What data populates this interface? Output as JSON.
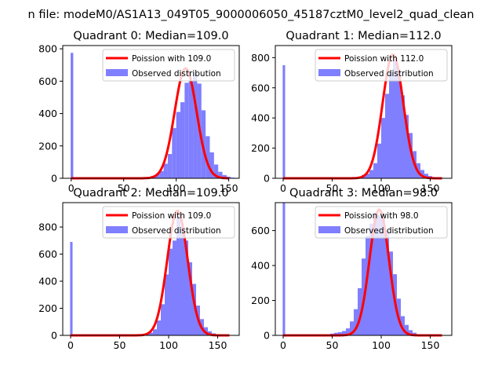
{
  "figure": {
    "suptitle": "n file: modeM0/AS1A13_049T05_9000006050_45187cztM0_level2_quad_clean"
  },
  "chart_data": [
    {
      "type": "bar",
      "title": "Quadrant 0: Median=109.0",
      "xlim": [
        -8,
        160
      ],
      "ylim": [
        0,
        820
      ],
      "xticks": [
        0,
        50,
        100,
        150
      ],
      "yticks": [
        0,
        200,
        400,
        600,
        800
      ],
      "legend": [
        "Poission with 109.0",
        "Observed distribution"
      ],
      "legend_placement": "top-right",
      "median": 109.0,
      "peak": 680,
      "bar_color": "#7f7fff",
      "line_color": "#ff0000",
      "zero_bin": 775,
      "hist": [
        [
          60,
          2
        ],
        [
          64,
          3
        ],
        [
          68,
          5
        ],
        [
          72,
          8
        ],
        [
          76,
          15
        ],
        [
          80,
          25
        ],
        [
          84,
          45
        ],
        [
          88,
          90
        ],
        [
          92,
          150
        ],
        [
          96,
          310
        ],
        [
          100,
          410
        ],
        [
          104,
          470
        ],
        [
          108,
          590
        ],
        [
          112,
          600
        ],
        [
          116,
          650
        ],
        [
          120,
          585
        ],
        [
          124,
          420
        ],
        [
          128,
          260
        ],
        [
          132,
          160
        ],
        [
          136,
          85
        ],
        [
          140,
          40
        ],
        [
          144,
          20
        ],
        [
          148,
          10
        ],
        [
          152,
          4
        ]
      ]
    },
    {
      "type": "bar",
      "title": "Quadrant 1: Median=112.0",
      "xlim": [
        -8,
        172
      ],
      "ylim": [
        0,
        880
      ],
      "xticks": [
        0,
        50,
        100,
        150
      ],
      "yticks": [
        0,
        200,
        400,
        600,
        800
      ],
      "legend": [
        "Poission with 112.0",
        "Observed distribution"
      ],
      "legend_placement": "top-right",
      "median": 112.0,
      "peak": 820,
      "bar_color": "#7f7fff",
      "line_color": "#ff0000",
      "zero_bin": 750,
      "hist": [
        [
          64,
          2
        ],
        [
          68,
          4
        ],
        [
          72,
          8
        ],
        [
          76,
          12
        ],
        [
          80,
          22
        ],
        [
          84,
          30
        ],
        [
          88,
          55
        ],
        [
          92,
          100
        ],
        [
          96,
          230
        ],
        [
          100,
          400
        ],
        [
          104,
          560
        ],
        [
          108,
          700
        ],
        [
          112,
          790
        ],
        [
          116,
          720
        ],
        [
          120,
          550
        ],
        [
          124,
          420
        ],
        [
          128,
          300
        ],
        [
          132,
          180
        ],
        [
          136,
          100
        ],
        [
          140,
          55
        ],
        [
          144,
          30
        ],
        [
          148,
          15
        ],
        [
          152,
          8
        ],
        [
          156,
          4
        ],
        [
          160,
          2
        ]
      ]
    },
    {
      "type": "bar",
      "title": "Quadrant 2: Median=109.0",
      "xlim": [
        -8,
        172
      ],
      "ylim": [
        0,
        980
      ],
      "xticks": [
        0,
        50,
        100,
        150
      ],
      "yticks": [
        0,
        200,
        400,
        600,
        800
      ],
      "legend": [
        "Poission with 109.0",
        "Observed distribution"
      ],
      "legend_placement": "top-right",
      "median": 109.0,
      "peak": 920,
      "bar_color": "#7f7fff",
      "line_color": "#ff0000",
      "zero_bin": 690,
      "hist": [
        [
          72,
          3
        ],
        [
          76,
          8
        ],
        [
          80,
          20
        ],
        [
          84,
          45
        ],
        [
          88,
          110
        ],
        [
          92,
          230
        ],
        [
          96,
          450
        ],
        [
          100,
          640
        ],
        [
          104,
          700
        ],
        [
          108,
          880
        ],
        [
          112,
          800
        ],
        [
          116,
          700
        ],
        [
          120,
          540
        ],
        [
          124,
          380
        ],
        [
          128,
          220
        ],
        [
          132,
          120
        ],
        [
          136,
          60
        ],
        [
          140,
          30
        ],
        [
          144,
          15
        ],
        [
          148,
          8
        ],
        [
          152,
          4
        ]
      ]
    },
    {
      "type": "bar",
      "title": "Quadrant 3: Median=98.0",
      "xlim": [
        -8,
        172
      ],
      "ylim": [
        0,
        760
      ],
      "xticks": [
        0,
        50,
        100,
        150
      ],
      "yticks": [
        0,
        200,
        400,
        600
      ],
      "legend": [
        "Poission with 98.0",
        "Observed distribution"
      ],
      "legend_placement": "top-right",
      "median": 98.0,
      "peak": 720,
      "bar_color": "#7f7fff",
      "line_color": "#ff0000",
      "zero_bin": 760,
      "hist": [
        [
          48,
          10
        ],
        [
          52,
          15
        ],
        [
          56,
          18
        ],
        [
          60,
          25
        ],
        [
          64,
          40
        ],
        [
          68,
          80
        ],
        [
          72,
          150
        ],
        [
          76,
          270
        ],
        [
          80,
          440
        ],
        [
          84,
          570
        ],
        [
          88,
          640
        ],
        [
          92,
          700
        ],
        [
          96,
          690
        ],
        [
          100,
          670
        ],
        [
          104,
          600
        ],
        [
          108,
          480
        ],
        [
          112,
          350
        ],
        [
          116,
          210
        ],
        [
          120,
          110
        ],
        [
          124,
          60
        ],
        [
          128,
          30
        ],
        [
          132,
          15
        ],
        [
          136,
          6
        ],
        [
          140,
          3
        ]
      ]
    }
  ]
}
